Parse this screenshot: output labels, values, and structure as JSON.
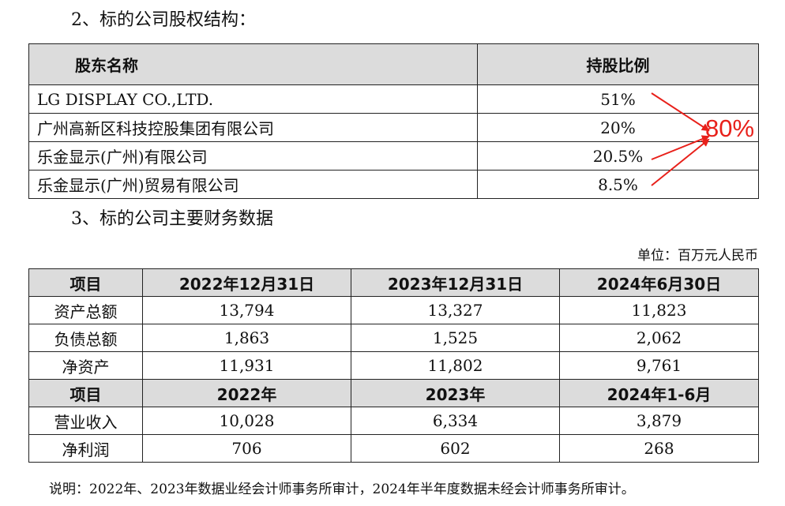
{
  "section2": {
    "title": "2、标的公司股权结构：",
    "headers": [
      "股东名称",
      "持股比例"
    ],
    "rows": [
      {
        "name": "LG DISPLAY CO.,LTD.",
        "pct": "51%"
      },
      {
        "name": "广州高新区科技控股集团有限公司",
        "pct": "20%"
      },
      {
        "name": "乐金显示(广州)有限公司",
        "pct": "20.5%"
      },
      {
        "name": "乐金显示(广州)贸易有限公司",
        "pct": "8.5%"
      }
    ],
    "annotation": {
      "text": "80%",
      "color": "#e8201a"
    }
  },
  "section3": {
    "title": "3、标的公司主要财务数据",
    "unit": "单位：百万元人民币",
    "balance_header": [
      "项目",
      "2022年12月31日",
      "2023年12月31日",
      "2024年6月30日"
    ],
    "balance_rows": [
      [
        "资产总额",
        "13,794",
        "13,327",
        "11,823"
      ],
      [
        "负债总额",
        "1,863",
        "1,525",
        "2,062"
      ],
      [
        "净资产",
        "11,931",
        "11,802",
        "9,761"
      ]
    ],
    "income_header": [
      "项目",
      "2022年",
      "2023年",
      "2024年1-6月"
    ],
    "income_rows": [
      [
        "营业收入",
        "10,028",
        "6,334",
        "3,879"
      ],
      [
        "净利润",
        "706",
        "602",
        "268"
      ]
    ],
    "note": "说明：2022年、2023年数据业经会计师事务所审计，2024年半年度数据未经会计师事务所审计。"
  }
}
